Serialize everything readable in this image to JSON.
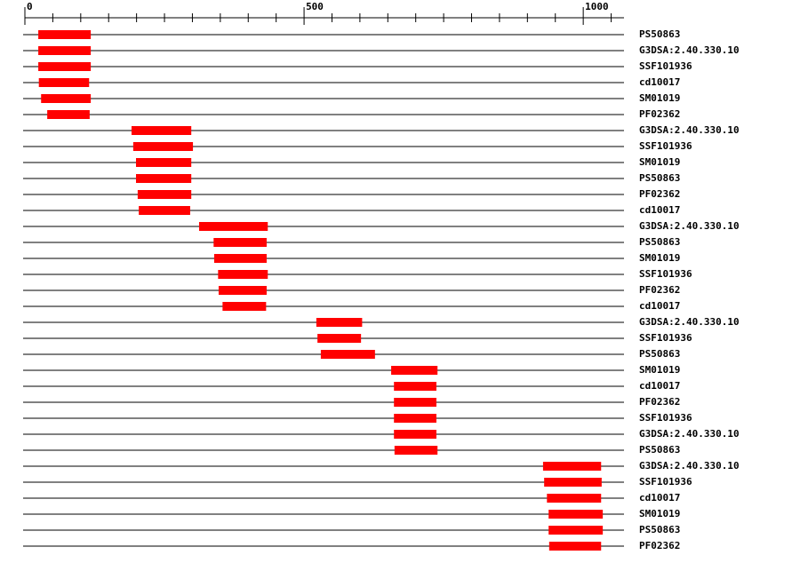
{
  "chart_data": {
    "type": "range",
    "categories": [
      "PS50863",
      "G3DSA:2.40.330.10",
      "SSF101936",
      "cd10017",
      "SM01019",
      "PF02362",
      "G3DSA:2.40.330.10",
      "SSF101936",
      "SM01019",
      "PS50863",
      "PF02362",
      "cd10017",
      "G3DSA:2.40.330.10",
      "PS50863",
      "SM01019",
      "SSF101936",
      "PF02362",
      "cd10017",
      "G3DSA:2.40.330.10",
      "SSF101936",
      "PS50863",
      "SM01019",
      "cd10017",
      "PF02362",
      "SSF101936",
      "G3DSA:2.40.330.10",
      "PS50863",
      "G3DSA:2.40.330.10",
      "SSF101936",
      "cd10017",
      "SM01019",
      "PS50863",
      "PF02362"
    ],
    "start": [
      24,
      24,
      24,
      25,
      29,
      40,
      191,
      194,
      199,
      199,
      202,
      204,
      312,
      338,
      339,
      346,
      347,
      354,
      522,
      524,
      530,
      656,
      661,
      661,
      661,
      661,
      662,
      928,
      930,
      935,
      938,
      938,
      939
    ],
    "end": [
      118,
      118,
      118,
      115,
      118,
      116,
      298,
      301,
      298,
      298,
      298,
      296,
      435,
      433,
      433,
      435,
      433,
      432,
      604,
      602,
      627,
      739,
      737,
      737,
      737,
      737,
      739,
      1032,
      1033,
      1032,
      1035,
      1035,
      1032
    ],
    "color": "#ff0000",
    "xlim": [
      0,
      1073
    ],
    "xticks": [
      0,
      500,
      1000
    ],
    "xminorticks": [
      50,
      100,
      150,
      200,
      250,
      300,
      350,
      400,
      450,
      550,
      600,
      650,
      700,
      750,
      800,
      850,
      900,
      950,
      1050
    ]
  }
}
